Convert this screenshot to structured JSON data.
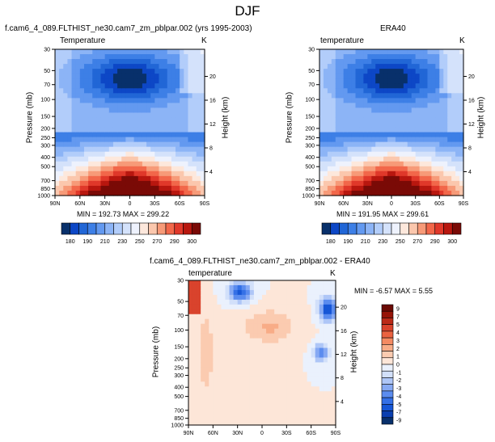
{
  "figure": {
    "title": "DJF"
  },
  "colors": {
    "temp_scale": [
      "#08306b",
      "#0d47c6",
      "#2166d6",
      "#3d7fe6",
      "#6399f0",
      "#8cb4f6",
      "#b2cdfa",
      "#d4e2fb",
      "#eef2fd",
      "#fde8dc",
      "#fbc7ad",
      "#f79a78",
      "#f2674a",
      "#e0382a",
      "#b8170f",
      "#7a0a06"
    ],
    "diff_scale": [
      "#08306b",
      "#0a3fb0",
      "#1656d6",
      "#3470e6",
      "#5b8cef",
      "#86a9f3",
      "#aec6f7",
      "#d2e0fa",
      "#eaf1fd",
      "#fde6d8",
      "#fbcbb0",
      "#f8ac87",
      "#f48a62",
      "#ea6240",
      "#d9432c",
      "#bb2a18",
      "#961408",
      "#6b0a04"
    ]
  },
  "chart_data": [
    {
      "type": "heatmap",
      "title": "f.cam6_4_089.FLTHIST_ne30.cam7_zm_pblpar.002 (yrs 1995-2003)",
      "variable_label": "Temperature",
      "units_label": "K",
      "ylabel": "Pressure (mb)",
      "ylabel_right": "Height (km)",
      "x_ticks": [
        "90N",
        "60N",
        "30N",
        "0",
        "30S",
        "60S",
        "90S"
      ],
      "y_ticks": [
        "30",
        "50",
        "70",
        "100",
        "150",
        "200",
        "250",
        "300",
        "400",
        "500",
        "700",
        "850",
        "1000"
      ],
      "y_ticks_right": [
        "20",
        "16",
        "12",
        "8",
        "4"
      ],
      "stats": "MIN = 192.73   MAX = 299.22",
      "colorbar_labels": [
        "180",
        "190",
        "210",
        "230",
        "250",
        "270",
        "290",
        "300"
      ]
    },
    {
      "type": "heatmap",
      "title": "ERA40",
      "variable_label": "temperature",
      "units_label": "K",
      "ylabel": "Pressure (mb)",
      "ylabel_right": "Height (km)",
      "x_ticks": [
        "90N",
        "60N",
        "30N",
        "0",
        "30S",
        "60S",
        "90S"
      ],
      "y_ticks": [
        "30",
        "50",
        "70",
        "100",
        "150",
        "200",
        "250",
        "300",
        "400",
        "500",
        "700",
        "850",
        "1000"
      ],
      "y_ticks_right": [
        "20",
        "16",
        "12",
        "8",
        "4"
      ],
      "stats": "MIN = 191.95   MAX = 299.61",
      "colorbar_labels": [
        "180",
        "190",
        "210",
        "230",
        "250",
        "270",
        "290",
        "300"
      ]
    },
    {
      "type": "heatmap",
      "title": "f.cam6_4_089.FLTHIST_ne30.cam7_zm_pblpar.002 - ERA40",
      "variable_label": "temperature",
      "units_label": "K",
      "ylabel": "Pressure (mb)",
      "ylabel_right": "Height (km)",
      "x_ticks": [
        "90N",
        "60N",
        "30N",
        "0",
        "30S",
        "60S",
        "90S"
      ],
      "y_ticks": [
        "30",
        "50",
        "70",
        "100",
        "150",
        "200",
        "250",
        "300",
        "400",
        "500",
        "700",
        "850",
        "1000"
      ],
      "y_ticks_right": [
        "20",
        "16",
        "12",
        "8",
        "4"
      ],
      "stats": "MIN =  -6.57  MAX =    5.55",
      "colorbar_labels": [
        "9",
        "7",
        "5",
        "4",
        "3",
        "2",
        "1",
        "0",
        "-1",
        "-2",
        "-3",
        "-4",
        "-5",
        "-7",
        "-9"
      ]
    }
  ]
}
